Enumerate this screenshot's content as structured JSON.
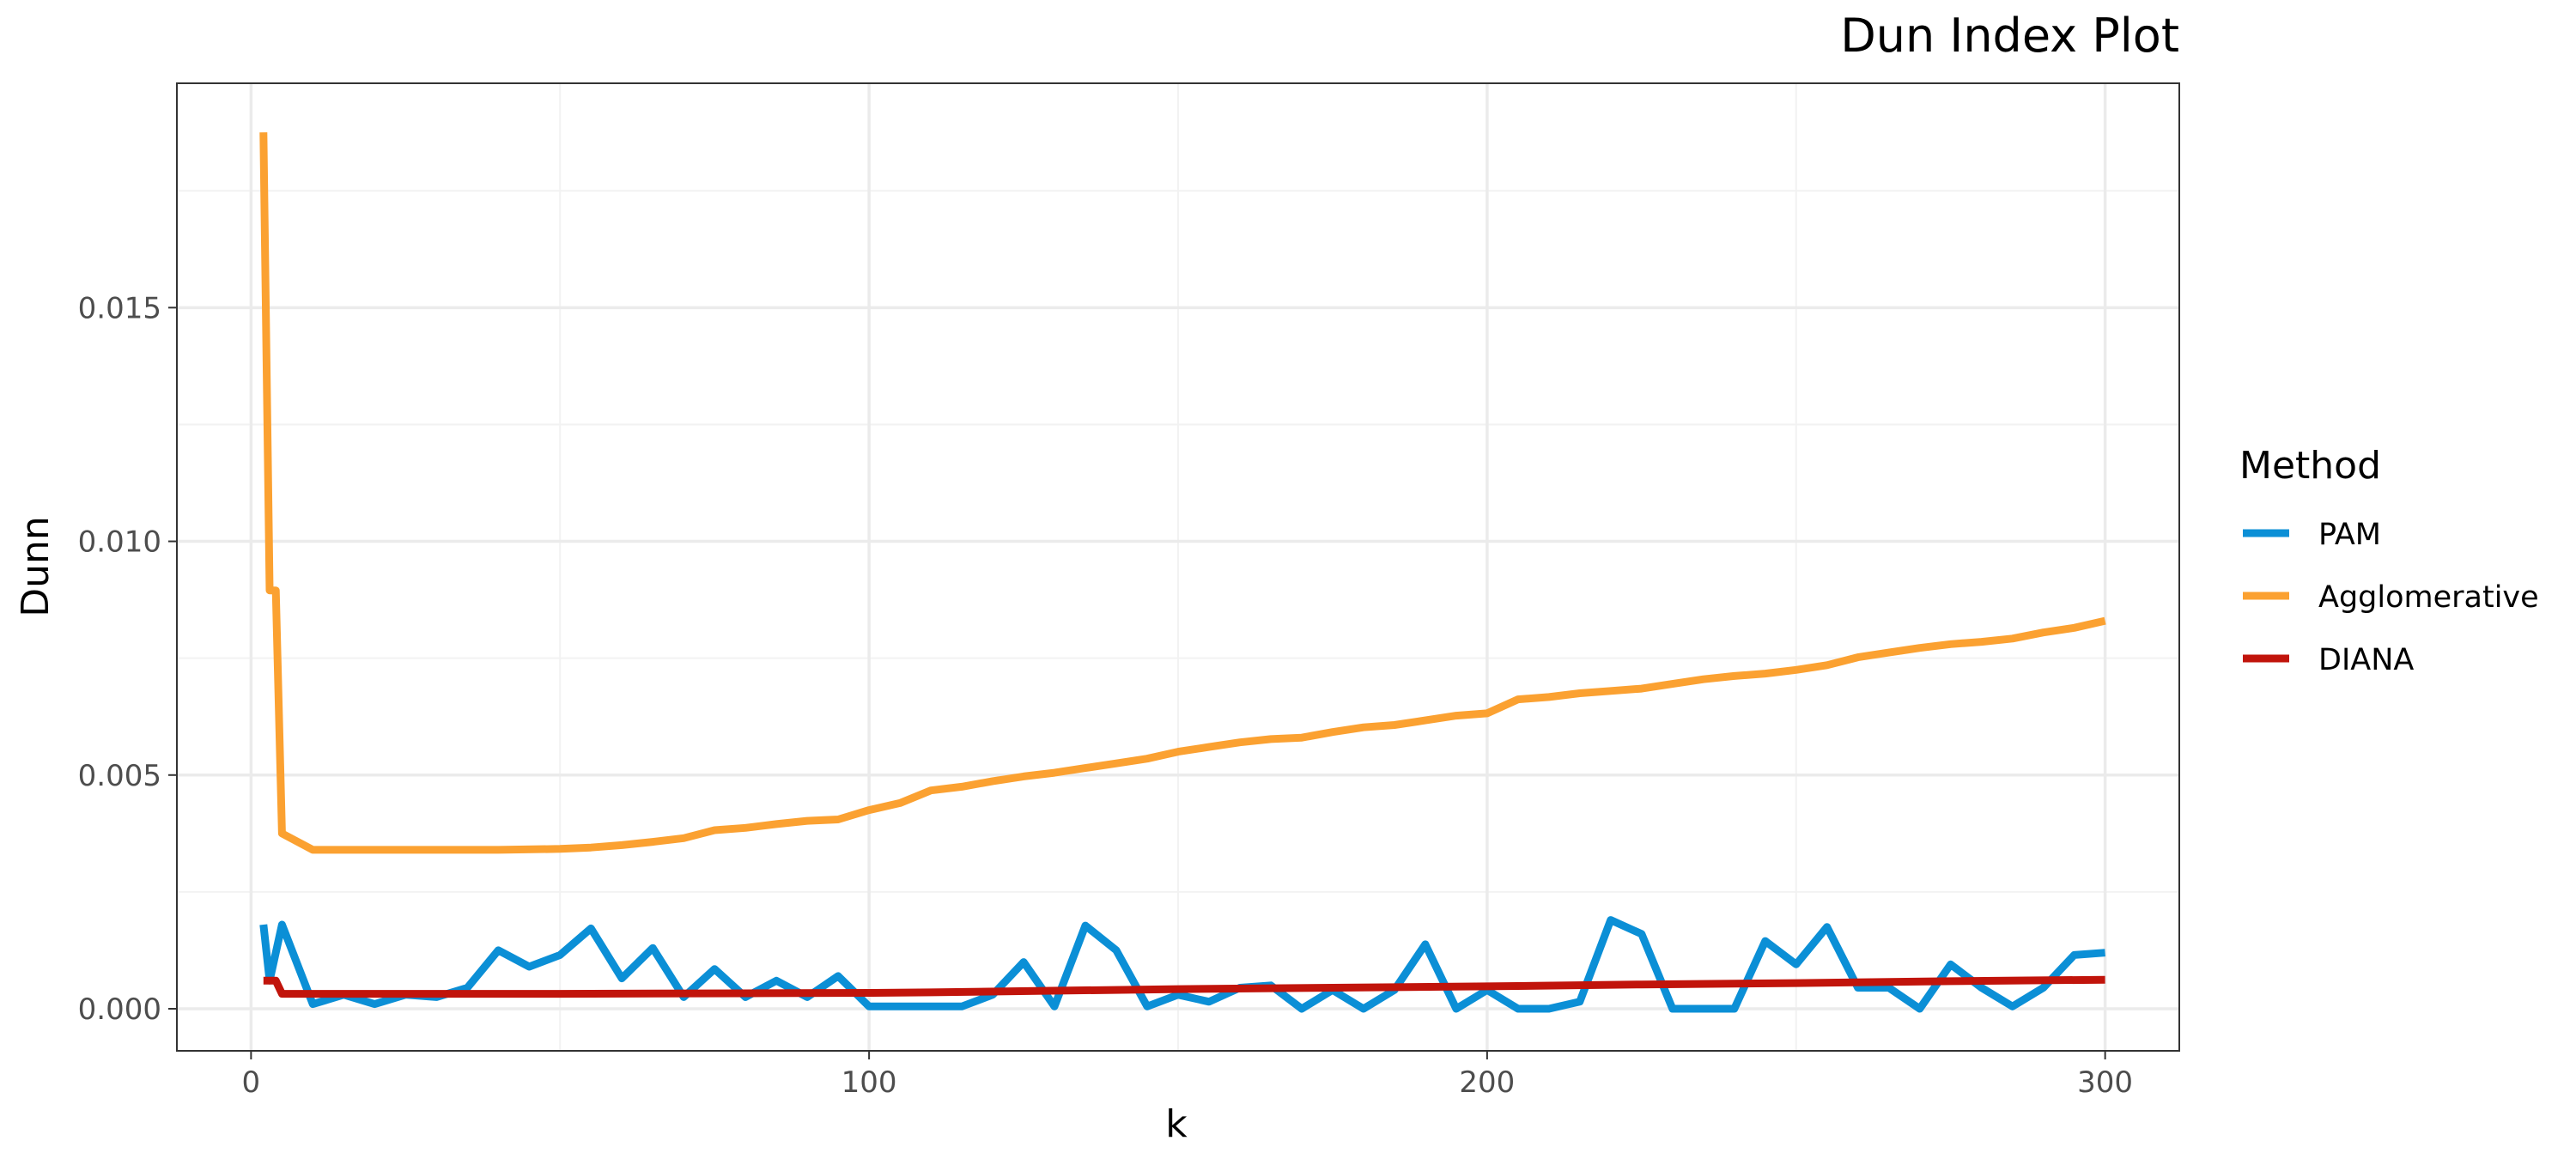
{
  "chart_data": {
    "type": "line",
    "title": "Dun Index Plot",
    "xlabel": "k",
    "ylabel": "Dunn",
    "xlim": [
      -12,
      312
    ],
    "ylim": [
      -0.0009,
      0.0198
    ],
    "x_ticks": [
      0,
      100,
      200,
      300
    ],
    "x_tick_labels": [
      "0",
      "100",
      "200",
      "300"
    ],
    "y_ticks": [
      0.0,
      0.005,
      0.01,
      0.015
    ],
    "y_tick_labels": [
      "0.000",
      "0.005",
      "0.010",
      "0.015"
    ],
    "x_minor_ticks": [
      50,
      150,
      250
    ],
    "y_minor_ticks": [
      0.0025,
      0.0075,
      0.0125,
      0.0175
    ],
    "grid": true,
    "legend": {
      "title": "Method",
      "position": "right"
    },
    "series": [
      {
        "name": "PAM",
        "color": "#0b8fd6",
        "x": [
          2,
          3,
          5,
          10,
          15,
          20,
          25,
          30,
          35,
          40,
          45,
          50,
          55,
          60,
          65,
          70,
          75,
          80,
          85,
          90,
          95,
          100,
          105,
          110,
          115,
          120,
          125,
          130,
          135,
          140,
          145,
          150,
          155,
          160,
          165,
          170,
          175,
          180,
          185,
          190,
          195,
          200,
          205,
          210,
          215,
          220,
          225,
          230,
          235,
          240,
          245,
          250,
          255,
          260,
          265,
          270,
          275,
          280,
          285,
          290,
          295,
          300
        ],
        "values": [
          0.0018,
          0.0006,
          0.0018,
          0.0001,
          0.0003,
          0.0001,
          0.0003,
          0.00025,
          0.00045,
          0.00125,
          0.0009,
          0.00115,
          0.00172,
          0.00065,
          0.0013,
          0.00025,
          0.00085,
          0.00025,
          0.0006,
          0.00025,
          0.0007,
          5e-05,
          5e-05,
          5e-05,
          5e-05,
          0.0003,
          0.001,
          5e-05,
          0.00178,
          0.00125,
          5e-05,
          0.0003,
          0.00015,
          0.00045,
          0.0005,
          0.0,
          0.0004,
          0.0,
          0.0004,
          0.00138,
          0.0,
          0.0004,
          0.0,
          0.0,
          0.00015,
          0.0019,
          0.0016,
          0.0,
          0.0,
          0.0,
          0.00145,
          0.00095,
          0.00175,
          0.00045,
          0.00045,
          0.0,
          0.00095,
          0.00045,
          5e-05,
          0.00045,
          0.00115,
          0.0012
        ]
      },
      {
        "name": "Agglomerative",
        "color": "#fba131",
        "x": [
          2,
          3,
          4,
          5,
          10,
          20,
          30,
          40,
          50,
          55,
          60,
          65,
          70,
          75,
          80,
          85,
          90,
          95,
          100,
          105,
          110,
          115,
          120,
          125,
          130,
          135,
          140,
          145,
          150,
          155,
          160,
          165,
          170,
          175,
          180,
          185,
          190,
          195,
          200,
          205,
          210,
          215,
          220,
          225,
          230,
          235,
          240,
          245,
          250,
          255,
          260,
          265,
          270,
          275,
          280,
          285,
          290,
          295,
          300
        ],
        "values": [
          0.01875,
          0.00895,
          0.00895,
          0.00375,
          0.0034,
          0.0034,
          0.0034,
          0.0034,
          0.00342,
          0.00345,
          0.0035,
          0.00357,
          0.00365,
          0.00382,
          0.00387,
          0.00395,
          0.00402,
          0.00405,
          0.00425,
          0.0044,
          0.00467,
          0.00475,
          0.00487,
          0.00497,
          0.00505,
          0.00515,
          0.00525,
          0.00535,
          0.0055,
          0.0056,
          0.0057,
          0.00577,
          0.0058,
          0.00592,
          0.00602,
          0.00607,
          0.00617,
          0.00627,
          0.00632,
          0.00662,
          0.00667,
          0.00675,
          0.0068,
          0.00685,
          0.00695,
          0.00705,
          0.00712,
          0.00717,
          0.00725,
          0.00735,
          0.00752,
          0.00762,
          0.00772,
          0.0078,
          0.00785,
          0.00792,
          0.00805,
          0.00815,
          0.0083
        ]
      },
      {
        "name": "DIANA",
        "color": "#c1140b",
        "x": [
          2,
          3,
          4,
          5,
          10,
          20,
          50,
          80,
          100,
          110,
          150,
          200,
          225,
          250,
          275,
          300
        ],
        "values": [
          0.0006,
          0.0006,
          0.0006,
          0.00032,
          0.00032,
          0.00032,
          0.00032,
          0.00033,
          0.00034,
          0.00035,
          0.00042,
          0.00048,
          0.00052,
          0.00055,
          0.00059,
          0.00062
        ]
      }
    ]
  }
}
